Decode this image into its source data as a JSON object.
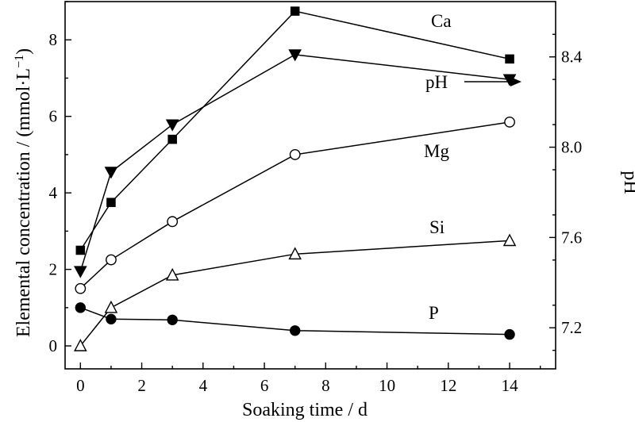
{
  "chart_data": {
    "type": "line",
    "xlabel": "Soaking time / d",
    "ylabel": "Elemental concentration / (mmol·L",
    "ylabel_sup": "−1",
    "ylabel_close": ")",
    "y2label": "pH",
    "xlim": [
      -0.5,
      15.5
    ],
    "ylim": [
      -0.6,
      9.0
    ],
    "y2lim": [
      7.018,
      8.645
    ],
    "x_ticks": [
      0,
      2,
      4,
      6,
      8,
      10,
      12,
      14
    ],
    "y_ticks": [
      0,
      2,
      4,
      6,
      8
    ],
    "y2_ticks": [
      "7.2",
      "7.6",
      "8.0",
      "8.4"
    ],
    "grid": false,
    "series": [
      {
        "name": "Ca",
        "axis": "left",
        "marker": "filled-square",
        "x": [
          0,
          1,
          3,
          7,
          14
        ],
        "y": [
          2.5,
          3.75,
          5.4,
          8.75,
          7.5
        ]
      },
      {
        "name": "pH",
        "axis": "right",
        "marker": "filled-triangle-down",
        "x": [
          0,
          1,
          3,
          7,
          14
        ],
        "y": [
          7.45,
          7.89,
          8.1,
          8.41,
          8.3
        ]
      },
      {
        "name": "Mg",
        "axis": "left",
        "marker": "open-circle",
        "x": [
          0,
          1,
          3,
          7,
          14
        ],
        "y": [
          1.5,
          2.25,
          3.25,
          5.0,
          5.85
        ]
      },
      {
        "name": "Si",
        "axis": "left",
        "marker": "open-triangle-up",
        "x": [
          0,
          1,
          3,
          7,
          14
        ],
        "y": [
          0.0,
          1.0,
          1.85,
          2.4,
          2.75
        ]
      },
      {
        "name": "P",
        "axis": "left",
        "marker": "filled-circle",
        "x": [
          0,
          1,
          3,
          7,
          14
        ],
        "y": [
          1.0,
          0.7,
          0.68,
          0.4,
          0.3
        ]
      }
    ],
    "annotations": {
      "Ca": "Ca",
      "pH": "pH",
      "Mg": "Mg",
      "Si": "Si",
      "P": "P"
    }
  }
}
